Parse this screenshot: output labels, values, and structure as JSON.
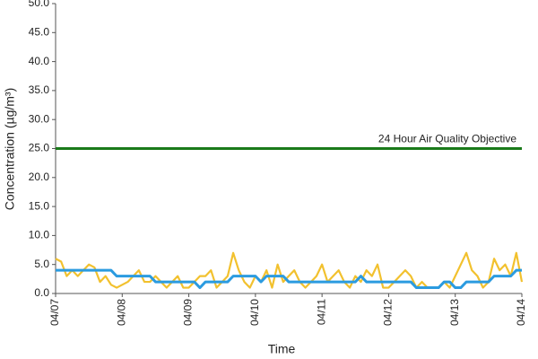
{
  "chart_data": {
    "type": "line",
    "y_label": "Concentration (µg/m³)",
    "x_label": "Time",
    "categories": [
      "04/07",
      null,
      null,
      null,
      null,
      null,
      null,
      null,
      null,
      null,
      null,
      null,
      "04/08",
      null,
      null,
      null,
      null,
      null,
      null,
      null,
      null,
      null,
      null,
      null,
      "04/09",
      null,
      null,
      null,
      null,
      null,
      null,
      null,
      null,
      null,
      null,
      null,
      "04/10",
      null,
      null,
      null,
      null,
      null,
      null,
      null,
      null,
      null,
      null,
      null,
      "04/11",
      null,
      null,
      null,
      null,
      null,
      null,
      null,
      null,
      null,
      null,
      null,
      "04/12",
      null,
      null,
      null,
      null,
      null,
      null,
      null,
      null,
      null,
      null,
      null,
      "04/13",
      null,
      null,
      null,
      null,
      null,
      null,
      null,
      null,
      null,
      null,
      null,
      "04/14"
    ],
    "series": [
      {
        "color": "#f2c12e",
        "values": [
          6,
          5.5,
          3,
          4,
          3,
          4,
          5,
          4.5,
          2,
          3,
          1.5,
          1,
          1.5,
          2,
          3,
          4,
          2,
          2,
          3,
          2,
          1,
          2,
          3,
          1,
          1,
          2,
          3,
          3,
          4,
          1,
          2,
          3,
          7,
          4,
          2,
          1,
          3,
          2,
          4,
          1,
          5,
          2,
          3,
          4,
          2,
          1,
          2,
          3,
          5,
          2,
          3,
          4,
          2,
          1,
          3,
          2,
          4,
          3,
          5,
          1,
          1,
          2,
          3,
          4,
          3,
          1,
          2,
          1,
          1,
          1,
          2,
          1,
          3,
          5,
          7,
          4,
          3,
          1,
          2,
          6,
          4,
          5,
          3,
          7,
          2
        ]
      },
      {
        "color": "#2b9be0",
        "values": [
          4,
          4,
          4,
          4,
          4,
          4,
          4,
          4,
          4,
          4,
          4,
          3,
          3,
          3,
          3,
          3,
          3,
          3,
          2,
          2,
          2,
          2,
          2,
          2,
          2,
          2,
          1,
          2,
          2,
          2,
          2,
          2,
          3,
          3,
          3,
          3,
          3,
          2,
          3,
          3,
          3,
          3,
          2,
          2,
          2,
          2,
          2,
          2,
          2,
          2,
          2,
          2,
          2,
          2,
          2,
          3,
          2,
          2,
          2,
          2,
          2,
          2,
          2,
          2,
          2,
          1,
          1,
          1,
          1,
          1,
          2,
          2,
          1,
          1,
          2,
          2,
          2,
          2,
          2,
          3,
          3,
          3,
          3,
          4,
          4
        ]
      }
    ],
    "reference_line": {
      "value": 25,
      "label": "24 Hour Air Quality Objective",
      "color": "#1a7a1a"
    },
    "ylim": [
      0,
      50
    ],
    "yticks": [
      {
        "value": 0,
        "label": "0.0"
      },
      {
        "value": 5,
        "label": "5.0"
      },
      {
        "value": 10,
        "label": "10.0"
      },
      {
        "value": 15,
        "label": "15.0"
      },
      {
        "value": 20,
        "label": "20.0"
      },
      {
        "value": 25,
        "label": "25.0"
      },
      {
        "value": 30,
        "label": "30.0"
      },
      {
        "value": 35,
        "label": "35.0"
      },
      {
        "value": 40,
        "label": "40.0"
      },
      {
        "value": 45,
        "label": "45.0"
      },
      {
        "value": 50,
        "label": "50.0"
      }
    ]
  }
}
